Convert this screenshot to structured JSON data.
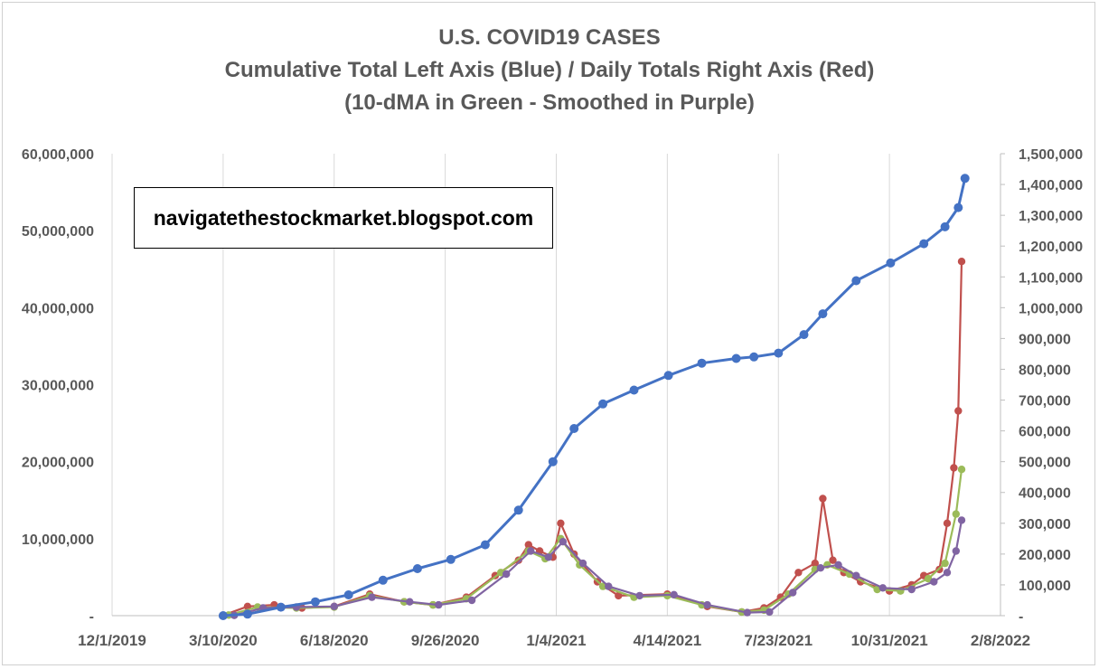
{
  "chart_data": {
    "type": "line",
    "title": "U.S. COVID19 CASES",
    "subtitle_1": "Cumulative Total Left Axis (Blue) / Daily Totals Right Axis (Red)",
    "subtitle_2": "(10-dMA in Green - Smoothed in Purple)",
    "annotation": "navigatethestockmarket.blogspot.com",
    "x_axis": {
      "type": "date",
      "range": [
        "2019-12-01",
        "2022-02-08"
      ],
      "tick_labels": [
        "12/1/2019",
        "3/10/2020",
        "6/18/2020",
        "9/26/2020",
        "1/4/2021",
        "4/14/2021",
        "7/23/2021",
        "10/31/2021",
        "2/8/2022"
      ]
    },
    "y_left": {
      "range": [
        0,
        60000000
      ],
      "tick_labels": [
        "-",
        "10,000,000",
        "20,000,000",
        "30,000,000",
        "40,000,000",
        "50,000,000",
        "60,000,000"
      ]
    },
    "y_right": {
      "range": [
        0,
        1500000
      ],
      "tick_labels": [
        "-",
        "100,000",
        "200,000",
        "300,000",
        "400,000",
        "500,000",
        "600,000",
        "700,000",
        "800,000",
        "900,000",
        "1,000,000",
        "1,100,000",
        "1,200,000",
        "1,300,000",
        "1,400,000",
        "1,500,000"
      ]
    },
    "grid": "vertical",
    "series": [
      {
        "axis": "left",
        "color": "#4472c4",
        "points": [
          [
            "2020-03-10",
            0
          ],
          [
            "2020-04-01",
            200000
          ],
          [
            "2020-05-01",
            1100000
          ],
          [
            "2020-06-01",
            1800000
          ],
          [
            "2020-07-01",
            2700000
          ],
          [
            "2020-08-01",
            4600000
          ],
          [
            "2020-09-01",
            6100000
          ],
          [
            "2020-10-01",
            7300000
          ],
          [
            "2020-11-01",
            9200000
          ],
          [
            "2020-12-01",
            13700000
          ],
          [
            "2021-01-01",
            20000000
          ],
          [
            "2021-01-20",
            24300000
          ],
          [
            "2021-02-15",
            27500000
          ],
          [
            "2021-03-15",
            29300000
          ],
          [
            "2021-04-15",
            31200000
          ],
          [
            "2021-05-15",
            32800000
          ],
          [
            "2021-06-15",
            33400000
          ],
          [
            "2021-07-01",
            33600000
          ],
          [
            "2021-07-23",
            34100000
          ],
          [
            "2021-08-15",
            36500000
          ],
          [
            "2021-09-01",
            39200000
          ],
          [
            "2021-10-01",
            43500000
          ],
          [
            "2021-11-01",
            45800000
          ],
          [
            "2021-12-01",
            48300000
          ],
          [
            "2021-12-20",
            50500000
          ],
          [
            "2022-01-01",
            53000000
          ],
          [
            "2022-01-07",
            56800000
          ]
        ]
      },
      {
        "axis": "right",
        "color": "#c0504d",
        "points": [
          [
            "2020-03-10",
            1000
          ],
          [
            "2020-04-01",
            30000
          ],
          [
            "2020-04-25",
            35000
          ],
          [
            "2020-05-20",
            25000
          ],
          [
            "2020-06-18",
            30000
          ],
          [
            "2020-07-20",
            70000
          ],
          [
            "2020-08-20",
            45000
          ],
          [
            "2020-09-15",
            35000
          ],
          [
            "2020-10-15",
            60000
          ],
          [
            "2020-11-10",
            130000
          ],
          [
            "2020-12-01",
            180000
          ],
          [
            "2020-12-10",
            230000
          ],
          [
            "2020-12-20",
            210000
          ],
          [
            "2021-01-01",
            190000
          ],
          [
            "2021-01-08",
            300000
          ],
          [
            "2021-01-20",
            200000
          ],
          [
            "2021-02-10",
            110000
          ],
          [
            "2021-03-01",
            65000
          ],
          [
            "2021-04-14",
            70000
          ],
          [
            "2021-05-20",
            30000
          ],
          [
            "2021-06-20",
            12000
          ],
          [
            "2021-07-10",
            25000
          ],
          [
            "2021-07-25",
            60000
          ],
          [
            "2021-08-10",
            140000
          ],
          [
            "2021-08-25",
            170000
          ],
          [
            "2021-09-01",
            380000
          ],
          [
            "2021-09-10",
            180000
          ],
          [
            "2021-09-20",
            140000
          ],
          [
            "2021-10-05",
            110000
          ],
          [
            "2021-10-31",
            80000
          ],
          [
            "2021-11-20",
            100000
          ],
          [
            "2021-12-01",
            130000
          ],
          [
            "2021-12-15",
            150000
          ],
          [
            "2021-12-22",
            300000
          ],
          [
            "2021-12-28",
            480000
          ],
          [
            "2022-01-01",
            665000
          ],
          [
            "2022-01-04",
            1150000
          ]
        ]
      },
      {
        "axis": "right",
        "color": "#9bbb59",
        "points": [
          [
            "2020-03-15",
            2000
          ],
          [
            "2020-04-10",
            28000
          ],
          [
            "2020-05-15",
            25000
          ],
          [
            "2020-06-18",
            28000
          ],
          [
            "2020-07-20",
            65000
          ],
          [
            "2020-08-20",
            45000
          ],
          [
            "2020-09-15",
            35000
          ],
          [
            "2020-10-15",
            55000
          ],
          [
            "2020-11-15",
            140000
          ],
          [
            "2020-12-10",
            210000
          ],
          [
            "2020-12-25",
            185000
          ],
          [
            "2021-01-08",
            250000
          ],
          [
            "2021-01-25",
            165000
          ],
          [
            "2021-02-15",
            95000
          ],
          [
            "2021-03-15",
            60000
          ],
          [
            "2021-04-14",
            65000
          ],
          [
            "2021-05-15",
            35000
          ],
          [
            "2021-06-20",
            12000
          ],
          [
            "2021-07-10",
            18000
          ],
          [
            "2021-08-01",
            70000
          ],
          [
            "2021-08-25",
            150000
          ],
          [
            "2021-09-05",
            165000
          ],
          [
            "2021-09-25",
            135000
          ],
          [
            "2021-10-20",
            85000
          ],
          [
            "2021-11-10",
            80000
          ],
          [
            "2021-12-05",
            120000
          ],
          [
            "2021-12-20",
            170000
          ],
          [
            "2021-12-30",
            330000
          ],
          [
            "2022-01-04",
            475000
          ]
        ]
      },
      {
        "axis": "right",
        "color": "#8064a2",
        "points": [
          [
            "2020-03-20",
            1000
          ],
          [
            "2020-04-15",
            25000
          ],
          [
            "2020-05-15",
            28000
          ],
          [
            "2020-06-18",
            30000
          ],
          [
            "2020-07-22",
            60000
          ],
          [
            "2020-08-25",
            45000
          ],
          [
            "2020-09-20",
            35000
          ],
          [
            "2020-10-20",
            50000
          ],
          [
            "2020-11-20",
            135000
          ],
          [
            "2020-12-12",
            210000
          ],
          [
            "2020-12-28",
            190000
          ],
          [
            "2021-01-10",
            240000
          ],
          [
            "2021-01-28",
            170000
          ],
          [
            "2021-02-20",
            95000
          ],
          [
            "2021-03-20",
            65000
          ],
          [
            "2021-04-20",
            68000
          ],
          [
            "2021-05-20",
            35000
          ],
          [
            "2021-06-25",
            10000
          ],
          [
            "2021-07-15",
            12000
          ],
          [
            "2021-08-05",
            75000
          ],
          [
            "2021-08-30",
            155000
          ],
          [
            "2021-09-15",
            165000
          ],
          [
            "2021-10-01",
            130000
          ],
          [
            "2021-10-25",
            90000
          ],
          [
            "2021-11-20",
            85000
          ],
          [
            "2021-12-10",
            110000
          ],
          [
            "2021-12-22",
            140000
          ],
          [
            "2021-12-30",
            210000
          ],
          [
            "2022-01-04",
            310000
          ]
        ]
      }
    ]
  }
}
